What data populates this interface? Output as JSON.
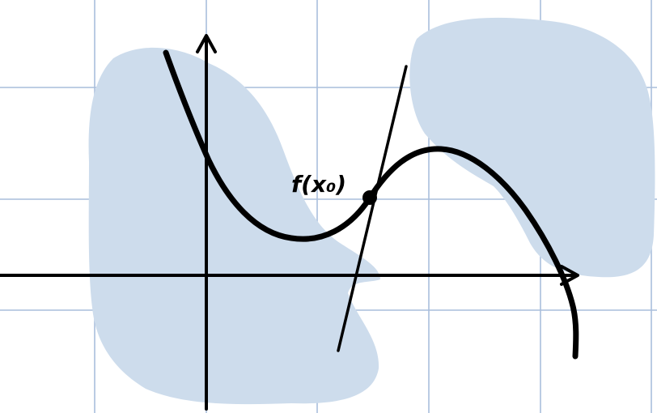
{
  "annotation": {
    "point_label": "f(x₀)"
  },
  "colors": {
    "background": "#ffffff",
    "grid": "#a9bedc",
    "shading": "#cddcec",
    "ink": "#000000"
  }
}
